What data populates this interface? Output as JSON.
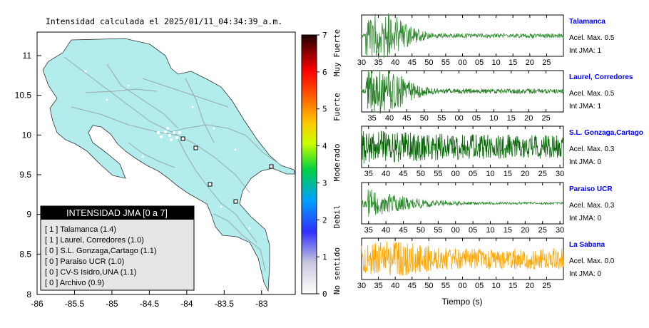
{
  "map": {
    "title": "Intensidad calculada el 2025/01/11_04:34:39_a.m.",
    "x_ticks": [
      "-86",
      "-85.5",
      "-85",
      "-84.5",
      "-84",
      "-83.5",
      "-83"
    ],
    "y_ticks": [
      "11",
      "10.5",
      "10",
      "9.5",
      "9",
      "8.5",
      "8"
    ],
    "land_color": "#b2ecec",
    "legend": {
      "title": "INTENSIDAD JMA [0 a 7]",
      "items": [
        "[ 1 ]  Talamanca (1.4)",
        "[ 1 ]  Laurel, Corredores (1.0)",
        "[ 0 ]  S.L. Gonzaga,Cartago (1.1)",
        "[ 0 ]  Paraiso UCR (1.0)",
        "[ 0 ]  CV-S Isidro,UNA (1.1)",
        "[ 0 ]  Archivo (0.9)"
      ]
    }
  },
  "colorbar": {
    "ticks": [
      "0",
      "1",
      "2",
      "3",
      "4",
      "5",
      "6",
      "7"
    ],
    "labels": [
      "No sentido",
      "Debil",
      "Moderado",
      "Fuerte",
      "Muy Fuerte"
    ]
  },
  "waveforms": {
    "xlabel": "Tiempo (s)",
    "panels": [
      {
        "station": "Talamanca",
        "accel": "Acel. Max. 0.5",
        "intensity": "Int JMA: 1",
        "color": "#2e8b2e",
        "ticks": [
          "30",
          "35",
          "40",
          "45",
          "50",
          "55",
          "00",
          "05",
          "10",
          "15",
          "20",
          "25"
        ],
        "tick_start": 30,
        "t_range": [
          30,
          90
        ],
        "amp_profile": "early"
      },
      {
        "station": "Laurel, Corredores",
        "accel": "Acel. Max. 0.5",
        "intensity": "Int JMA: 1",
        "color": "#1f7a1f",
        "ticks": [
          "35",
          "40",
          "45",
          "50",
          "55",
          "00",
          "05",
          "10",
          "15",
          "20",
          "25"
        ],
        "tick_start": 35,
        "t_range": [
          32,
          90
        ],
        "amp_profile": "early"
      },
      {
        "station": "S.L. Gonzaga,Cartago",
        "accel": "Acel. Max. 0.3",
        "intensity": "Int JMA: 0",
        "color": "#006400",
        "ticks": [
          "35",
          "40",
          "45",
          "50",
          "55",
          "00",
          "05",
          "10",
          "15",
          "20",
          "25",
          "30"
        ],
        "tick_start": 35,
        "t_range": [
          33,
          91
        ],
        "amp_profile": "flat"
      },
      {
        "station": "Paraiso UCR",
        "accel": "Acel. Max. 0.3",
        "intensity": "Int JMA: 0",
        "color": "#2e8b2e",
        "ticks": [
          "35",
          "40",
          "45",
          "50",
          "55",
          "00",
          "05",
          "10",
          "15",
          "20",
          "25",
          "30"
        ],
        "tick_start": 35,
        "t_range": [
          33,
          91
        ],
        "amp_profile": "decay"
      },
      {
        "station": "La Sabana",
        "accel": "Acel. Max. 0.0",
        "intensity": "Int JMA: 0",
        "color": "#ffa500",
        "ticks": [
          "30",
          "35",
          "40",
          "45",
          "50",
          "55",
          "00",
          "05",
          "10",
          "15",
          "20",
          "25"
        ],
        "tick_start": 30,
        "t_range": [
          30,
          90
        ],
        "amp_profile": "mid"
      }
    ]
  }
}
